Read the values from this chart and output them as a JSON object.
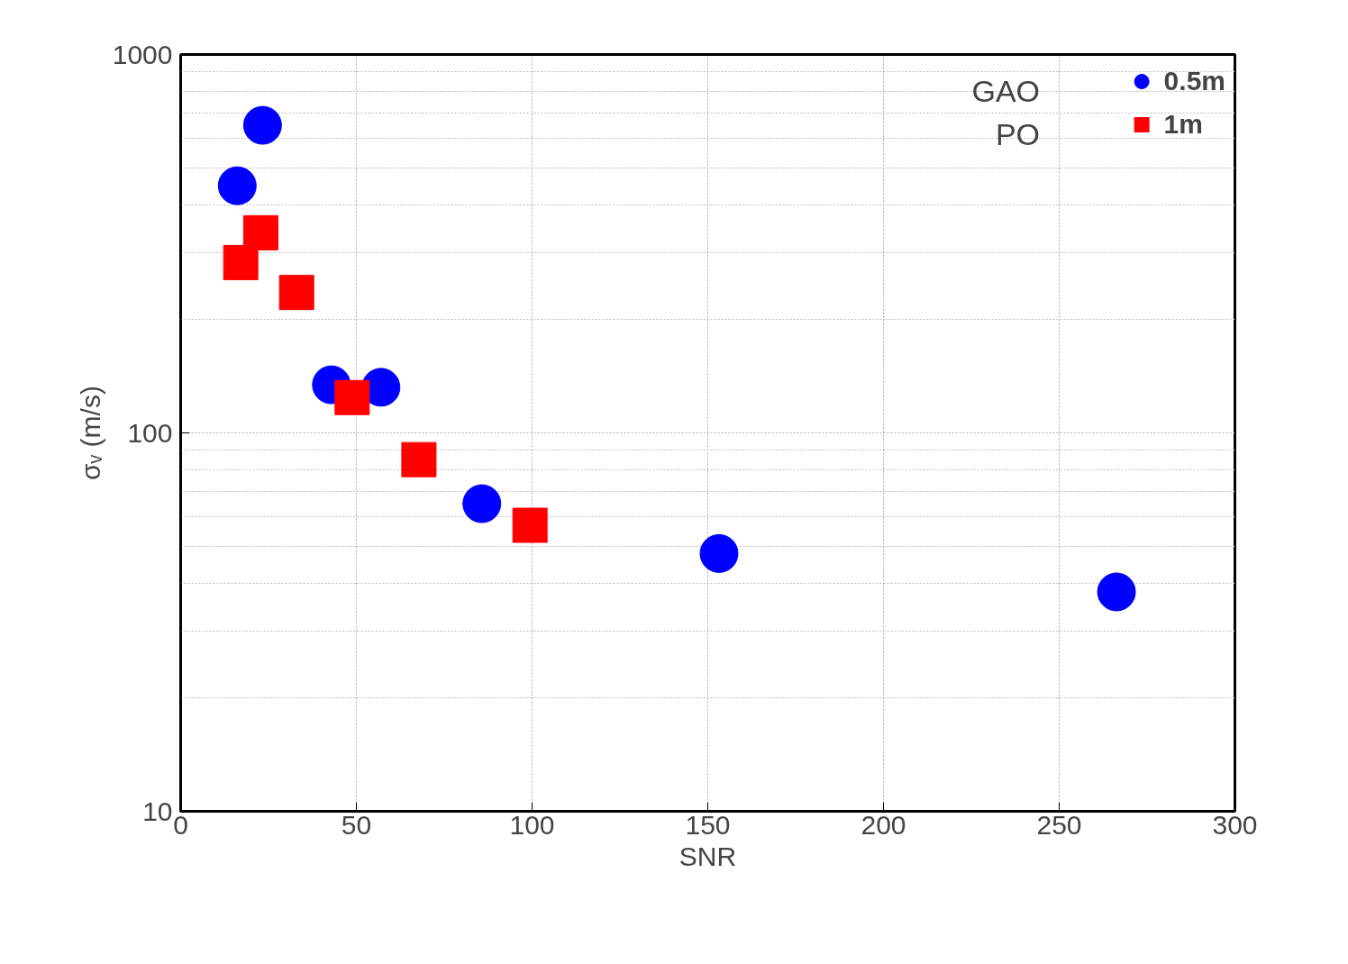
{
  "chart_data": {
    "type": "scatter",
    "xlabel": "SNR",
    "ylabel": "σᵥ (m/s)",
    "xlim": [
      0,
      300
    ],
    "xticks": [
      0,
      50,
      100,
      150,
      200,
      250,
      300
    ],
    "ylim": [
      10,
      1000
    ],
    "yticks": [
      10,
      100,
      1000
    ],
    "log": true,
    "grid": true,
    "legend": "top right",
    "annotations": [
      "GAO",
      "PO"
    ],
    "series": [
      {
        "name": "0.5m",
        "color": "#0000ff",
        "marker": "circle",
        "x": [
          23.3,
          16.1,
          42.9,
          57,
          85.7,
          153.2,
          266.3
        ],
        "values": [
          650,
          450,
          134,
          132,
          65,
          48,
          38
        ]
      },
      {
        "name": "1m",
        "color": "#ff0000",
        "marker": "square",
        "x": [
          22.8,
          17.1,
          33,
          48.8,
          67.8,
          99.4
        ],
        "values": [
          338,
          282,
          235,
          124,
          85,
          57
        ]
      }
    ]
  }
}
